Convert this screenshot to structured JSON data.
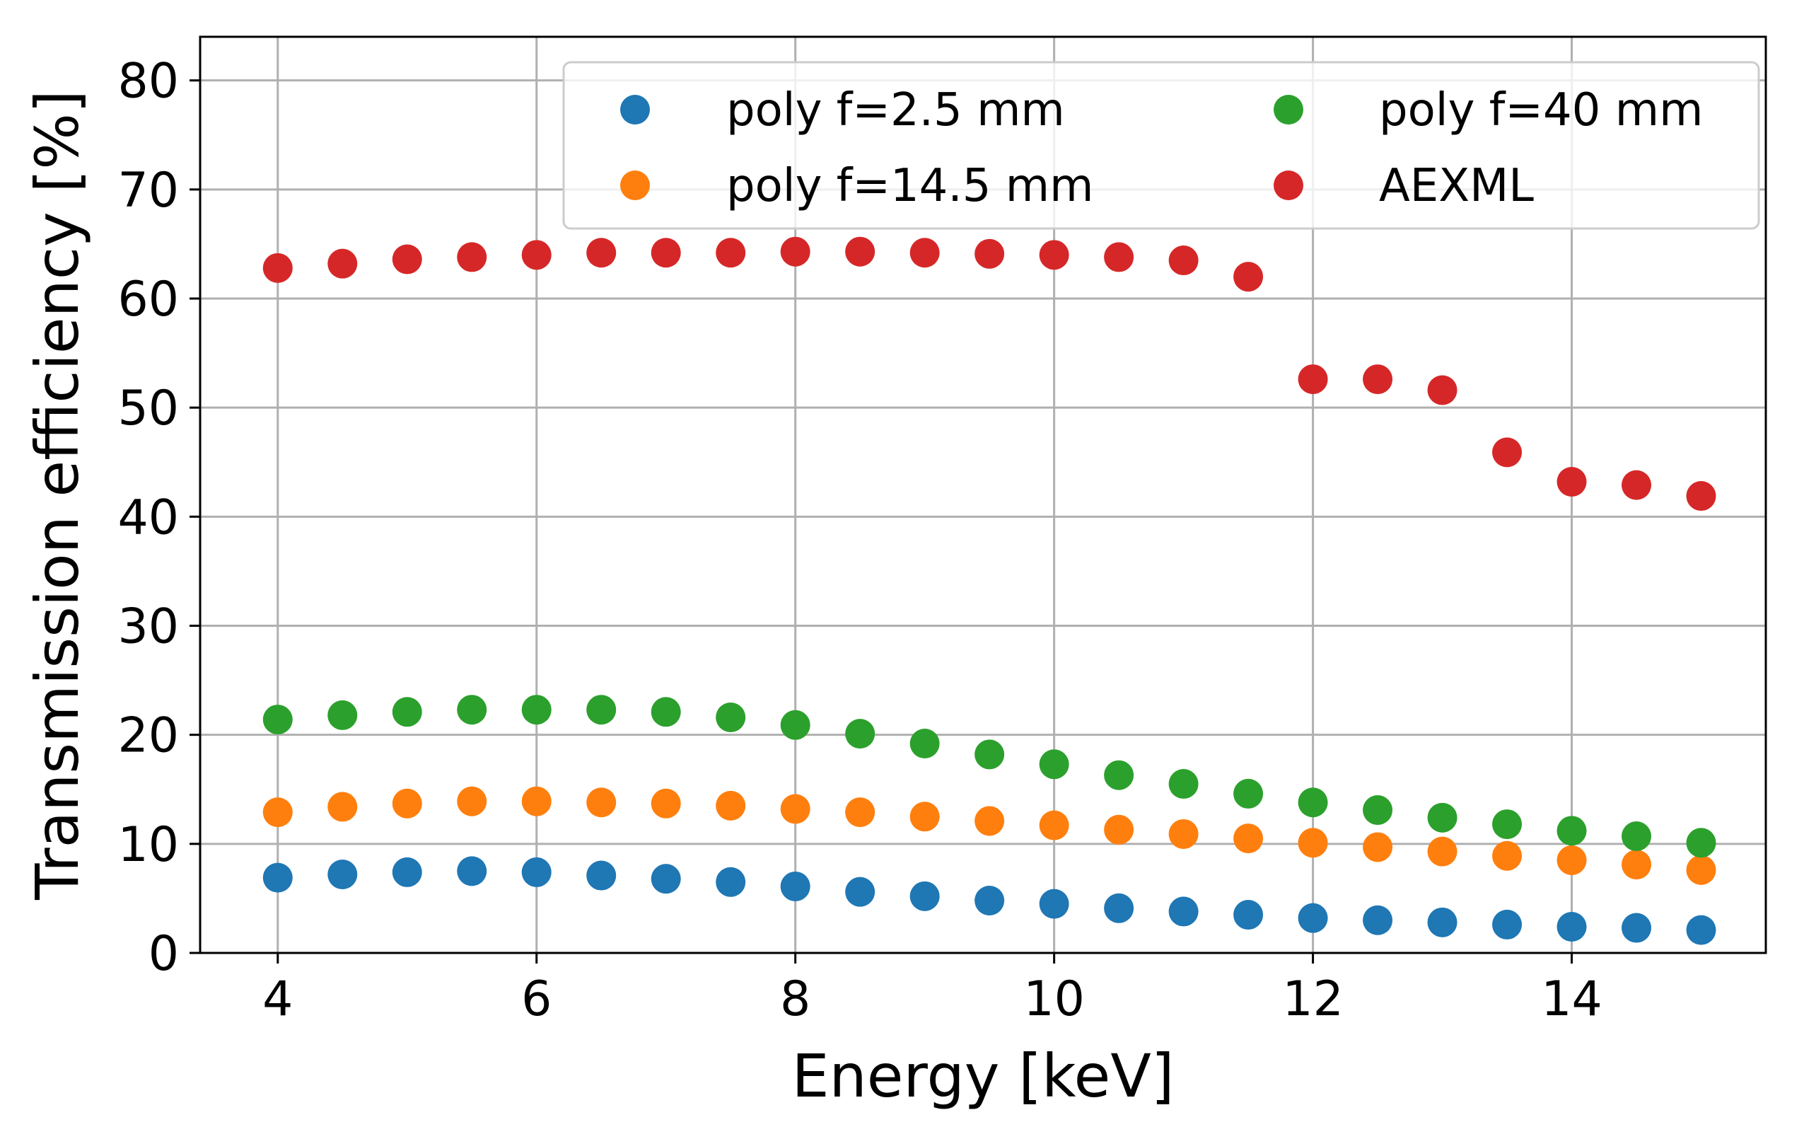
{
  "chart_data": {
    "type": "scatter",
    "title": "",
    "xlabel": "Energy [keV]",
    "ylabel": "Transmission efficiency [%]",
    "xlim": [
      3.4,
      15.5
    ],
    "ylim": [
      0,
      84
    ],
    "x_ticks": [
      4,
      6,
      8,
      10,
      12,
      14
    ],
    "x_tick_labels": [
      "4",
      "6",
      "8",
      "10",
      "12",
      "14"
    ],
    "y_ticks": [
      0,
      10,
      20,
      30,
      40,
      50,
      60,
      70,
      80
    ],
    "y_tick_labels": [
      "0",
      "10",
      "20",
      "30",
      "40",
      "50",
      "60",
      "70",
      "80"
    ],
    "grid": true,
    "legend_position": "top-right",
    "x": [
      4,
      4.5,
      5,
      5.5,
      6,
      6.5,
      7,
      7.5,
      8,
      8.5,
      9,
      9.5,
      10,
      10.5,
      11,
      11.5,
      12,
      12.5,
      13,
      13.5,
      14,
      14.5,
      15
    ],
    "series": [
      {
        "name": "poly f=2.5 mm",
        "color": "#1f77b4",
        "values": [
          6.9,
          7.2,
          7.4,
          7.5,
          7.4,
          7.1,
          6.8,
          6.5,
          6.1,
          5.6,
          5.2,
          4.8,
          4.5,
          4.1,
          3.8,
          3.5,
          3.2,
          3.0,
          2.8,
          2.6,
          2.4,
          2.3,
          2.1
        ]
      },
      {
        "name": "poly f=14.5 mm",
        "color": "#ff7f0e",
        "values": [
          12.9,
          13.4,
          13.7,
          13.9,
          13.9,
          13.8,
          13.7,
          13.5,
          13.2,
          12.9,
          12.5,
          12.1,
          11.7,
          11.3,
          10.9,
          10.5,
          10.1,
          9.7,
          9.3,
          8.9,
          8.5,
          8.1,
          7.6
        ]
      },
      {
        "name": "poly f=40 mm",
        "color": "#2ca02c",
        "values": [
          21.4,
          21.8,
          22.1,
          22.3,
          22.3,
          22.3,
          22.1,
          21.6,
          20.9,
          20.1,
          19.2,
          18.2,
          17.3,
          16.3,
          15.5,
          14.6,
          13.8,
          13.1,
          12.4,
          11.8,
          11.2,
          10.7,
          10.1
        ]
      },
      {
        "name": "AEXML",
        "color": "#d62728",
        "values": [
          62.8,
          63.2,
          63.6,
          63.8,
          64.0,
          64.2,
          64.2,
          64.2,
          64.3,
          64.3,
          64.2,
          64.1,
          64.0,
          63.8,
          63.5,
          62.0,
          52.6,
          52.6,
          51.6,
          45.9,
          43.2,
          42.9,
          41.9
        ]
      }
    ]
  }
}
